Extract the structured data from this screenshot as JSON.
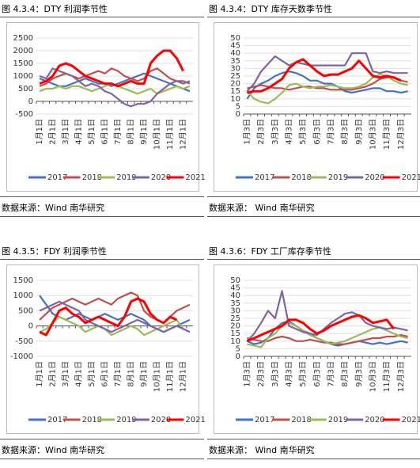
{
  "figures": [
    {
      "title": "图 4.3.4：DTY 利润季节性",
      "source": "数据来源：Wind 南华研究",
      "chart_data": {
        "type": "line",
        "categories": [
          "1月1日",
          null,
          "2月1日",
          null,
          "3月1日",
          null,
          "4月1日",
          null,
          "5月1日",
          null,
          "6月1日",
          null,
          "7月1日",
          null,
          "8月1日",
          null,
          "9月1日",
          null,
          "10月1日",
          null,
          "11月1日",
          null,
          "12月1日",
          null
        ],
        "ylim": [
          -500,
          2500
        ],
        "yticks": [
          -500,
          0,
          500,
          1000,
          1500,
          2000,
          2500
        ],
        "series": [
          {
            "name": "2017",
            "color": "#4472c4",
            "values": [
              900,
              800,
              700,
              600,
              600,
              700,
              800,
              900,
              800,
              700,
              700,
              600,
              700,
              800,
              900,
              1000,
              1100,
              1000,
              900,
              800,
              700,
              600,
              500,
              400
            ]
          },
          {
            "name": "2018",
            "color": "#c0504d",
            "values": [
              600,
              700,
              900,
              1000,
              1100,
              1000,
              900,
              1000,
              1100,
              1200,
              1100,
              1300,
              1200,
              1000,
              900,
              800,
              900,
              1200,
              1300,
              1100,
              900,
              800,
              700,
              800
            ]
          },
          {
            "name": "2019",
            "color": "#9bbb59",
            "values": [
              400,
              500,
              500,
              600,
              500,
              600,
              600,
              500,
              400,
              500,
              600,
              700,
              600,
              500,
              400,
              300,
              400,
              500,
              300,
              400,
              500,
              600,
              500,
              600
            ]
          },
          {
            "name": "2020",
            "color": "#8064a2",
            "values": [
              1000,
              900,
              1300,
              1200,
              1100,
              1000,
              800,
              600,
              700,
              600,
              400,
              300,
              100,
              -100,
              -200,
              -100,
              -100,
              0,
              300,
              500,
              700,
              800,
              800,
              700
            ]
          },
          {
            "name": "2021",
            "color": "#ff0000",
            "values": [
              700,
              800,
              1000,
              1400,
              1500,
              1400,
              1200,
              1000,
              900,
              800,
              700,
              700,
              600,
              700,
              800,
              700,
              700,
              1500,
              1800,
              2000,
              2000,
              1700,
              1200,
              null
            ]
          }
        ]
      }
    },
    {
      "title": "图 4.3.4：DTY 库存天数季节性",
      "source": "数据来源： Wind 南华研究",
      "chart_data": {
        "type": "line",
        "categories": [
          "1月3日",
          null,
          "2月3日",
          null,
          "3月3日",
          null,
          "4月3日",
          null,
          "5月3日",
          null,
          "6月3日",
          null,
          "7月3日",
          null,
          "8月3日",
          null,
          "9月3日",
          null,
          "10月3日",
          null,
          "11月3日",
          null,
          "12月3日",
          null
        ],
        "ylim": [
          0,
          50
        ],
        "yticks": [
          0,
          5,
          10,
          15,
          20,
          25,
          30,
          35,
          40,
          45,
          50
        ],
        "series": [
          {
            "name": "2017",
            "color": "#4472c4",
            "values": [
              10,
              17,
              20,
              22,
              25,
              27,
              28,
              27,
              25,
              22,
              22,
              20,
              20,
              18,
              15,
              14,
              15,
              16,
              17,
              17,
              15,
              15,
              14,
              15
            ]
          },
          {
            "name": "2018",
            "color": "#c0504d",
            "values": [
              17,
              18,
              19,
              18,
              17,
              17,
              16,
              17,
              18,
              18,
              17,
              17,
              16,
              16,
              16,
              16,
              17,
              18,
              20,
              23,
              24,
              24,
              22,
              21
            ]
          },
          {
            "name": "2019",
            "color": "#9bbb59",
            "values": [
              15,
              10,
              8,
              7,
              10,
              14,
              19,
              20,
              18,
              17,
              18,
              18,
              19,
              18,
              17,
              17,
              18,
              20,
              24,
              26,
              25,
              22,
              20,
              19
            ]
          },
          {
            "name": "2020",
            "color": "#8064a2",
            "values": [
              15,
              20,
              28,
              33,
              38,
              35,
              32,
              34,
              33,
              32,
              32,
              32,
              32,
              32,
              32,
              40,
              40,
              40,
              28,
              27,
              28,
              27,
              27,
              27
            ]
          },
          {
            "name": "2021",
            "color": "#ff0000",
            "values": [
              14,
              15,
              15,
              17,
              20,
              23,
              30,
              34,
              36,
              32,
              28,
              25,
              26,
              26,
              28,
              30,
              35,
              30,
              25,
              24,
              25,
              24,
              22,
              null
            ]
          }
        ]
      }
    },
    {
      "title": "图 4.3.5：FDY 利润季节性",
      "source": "数据来源：Wind 南华研究",
      "chart_data": {
        "type": "line",
        "categories": [
          "1月1日",
          null,
          "2月1日",
          null,
          "3月1日",
          null,
          "4月1日",
          null,
          "5月1日",
          null,
          "6月1日",
          null,
          "7月1日",
          null,
          "8月1日",
          null,
          "9月1日",
          null,
          "10月1日",
          null,
          "11月1日",
          null,
          "12月1日",
          null
        ],
        "ylim": [
          -1000,
          1500
        ],
        "yticks": [
          -1000,
          -500,
          0,
          500,
          1000,
          1500
        ],
        "series": [
          {
            "name": "2017",
            "color": "#4472c4",
            "values": [
              1000,
              700,
              400,
              300,
              200,
              300,
              400,
              300,
              200,
              300,
              400,
              300,
              200,
              300,
              400,
              300,
              200,
              0,
              -100,
              -200,
              -100,
              0,
              100,
              200
            ]
          },
          {
            "name": "2018",
            "color": "#c0504d",
            "values": [
              200,
              400,
              600,
              700,
              800,
              900,
              800,
              700,
              800,
              900,
              800,
              700,
              900,
              1000,
              1100,
              1000,
              500,
              300,
              200,
              100,
              300,
              500,
              600,
              700
            ]
          },
          {
            "name": "2019",
            "color": "#9bbb59",
            "values": [
              -200,
              -100,
              100,
              300,
              200,
              100,
              0,
              -200,
              -100,
              0,
              -100,
              -300,
              -200,
              -100,
              0,
              -100,
              -300,
              -200,
              -100,
              0,
              100,
              200,
              -100,
              -200
            ]
          },
          {
            "name": "2020",
            "color": "#8064a2",
            "values": [
              500,
              600,
              700,
              800,
              700,
              600,
              500,
              200,
              100,
              0,
              -100,
              -200,
              -100,
              0,
              100,
              200,
              100,
              0,
              -100,
              -200,
              -100,
              0,
              -100,
              -200
            ]
          },
          {
            "name": "2021",
            "color": "#ff0000",
            "values": [
              -200,
              -300,
              100,
              500,
              600,
              400,
              300,
              100,
              200,
              300,
              200,
              100,
              0,
              300,
              800,
              900,
              800,
              400,
              200,
              100,
              300,
              200,
              null,
              null
            ]
          }
        ]
      }
    },
    {
      "title": "图 4.3.6：FDY 工厂库存季节性",
      "source": "数据来源： Wind 南华研究",
      "chart_data": {
        "type": "line",
        "categories": [
          "1月3日",
          null,
          "2月3日",
          null,
          "3月3日",
          null,
          "4月3日",
          null,
          "5月3日",
          null,
          "6月3日",
          null,
          "7月3日",
          null,
          "8月3日",
          null,
          "9月3日",
          null,
          "10月3日",
          null,
          "11月3日",
          null,
          "12月3日",
          null
        ],
        "ylim": [
          0,
          50
        ],
        "yticks": [
          0,
          5,
          10,
          15,
          20,
          25,
          30,
          35,
          40,
          45,
          50
        ],
        "series": [
          {
            "name": "2017",
            "color": "#4472c4",
            "values": [
              10,
              8,
              9,
              12,
              18,
              22,
              23,
              20,
              17,
              15,
              12,
              10,
              8,
              7,
              8,
              9,
              10,
              9,
              8,
              9,
              8,
              9,
              10,
              9
            ]
          },
          {
            "name": "2018",
            "color": "#c0504d",
            "values": [
              12,
              11,
              10,
              10,
              12,
              13,
              12,
              10,
              10,
              11,
              10,
              9,
              9,
              8,
              8,
              9,
              10,
              11,
              12,
              12,
              13,
              13,
              14,
              13
            ]
          },
          {
            "name": "2019",
            "color": "#9bbb59",
            "values": [
              8,
              7,
              6,
              12,
              15,
              20,
              22,
              20,
              17,
              14,
              12,
              10,
              8,
              9,
              10,
              12,
              14,
              16,
              18,
              19,
              17,
              15,
              13,
              12
            ]
          },
          {
            "name": "2020",
            "color": "#8064a2",
            "values": [
              10,
              15,
              22,
              30,
              25,
              43,
              20,
              18,
              16,
              15,
              14,
              18,
              22,
              25,
              28,
              29,
              27,
              22,
              20,
              19,
              18,
              19,
              18,
              17
            ]
          },
          {
            "name": "2021",
            "color": "#ff0000",
            "values": [
              10,
              12,
              14,
              16,
              18,
              20,
              24,
              24,
              22,
              18,
              15,
              17,
              20,
              22,
              24,
              26,
              27,
              25,
              22,
              23,
              24,
              18,
              null,
              null
            ]
          }
        ]
      }
    }
  ]
}
